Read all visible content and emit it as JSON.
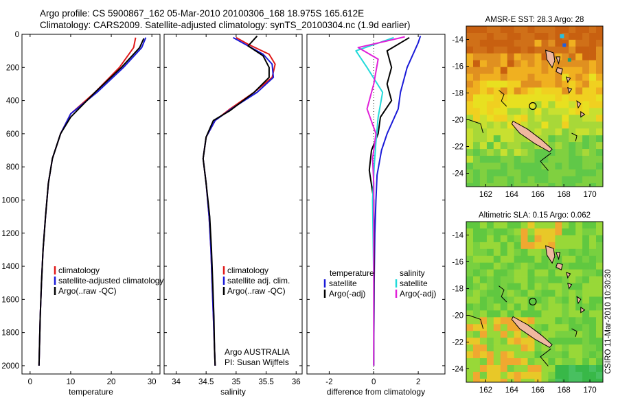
{
  "header": {
    "line1": "Argo profile: CS 5900867_162 05-Mar-2010 20100306_168 18.975S 165.612E",
    "line2": "Climatology: CARS2009. Satellite-adjusted climatology: synTS_20100304.nc (1.9d earlier)"
  },
  "stamp": "CSIRO 11-Mar-2010 10:30:30",
  "colors": {
    "climatology": "#e01818",
    "satellite": "#1a1ad8",
    "argo": "#000000",
    "cyan": "#22dada",
    "magenta": "#e020d8"
  },
  "chart_data": [
    {
      "type": "line",
      "name": "temperature-profile",
      "xlabel": "temperature",
      "ylabel": "",
      "xlim": [
        -2,
        32
      ],
      "ylim": [
        2050,
        0
      ],
      "xticks": [
        0,
        10,
        20,
        30
      ],
      "yticks": [
        0,
        200,
        400,
        600,
        800,
        1000,
        1200,
        1400,
        1600,
        1800,
        2000
      ],
      "legend": {
        "position": "lower-right",
        "entries": [
          "climatology",
          "satellite-adjusted climatology",
          "Argo(..raw -QC)"
        ]
      },
      "series": [
        {
          "name": "climatology",
          "color": "red",
          "points": [
            [
              26,
              20
            ],
            [
              25.5,
              80
            ],
            [
              22,
              200
            ],
            [
              16,
              350
            ],
            [
              10,
              480
            ],
            [
              7.5,
              600
            ],
            [
              5.5,
              750
            ],
            [
              4.5,
              900
            ],
            [
              3.8,
              1100
            ],
            [
              3.2,
              1300
            ],
            [
              2.8,
              1500
            ],
            [
              2.5,
              1700
            ],
            [
              2.3,
              1900
            ],
            [
              2.2,
              2000
            ]
          ]
        },
        {
          "name": "satellite-adjusted climatology",
          "color": "blue",
          "points": [
            [
              28.5,
              20
            ],
            [
              27.5,
              80
            ],
            [
              23,
              200
            ],
            [
              16.5,
              350
            ],
            [
              10,
              480
            ],
            [
              7.5,
              600
            ],
            [
              5.5,
              750
            ],
            [
              4.5,
              900
            ],
            [
              3.8,
              1100
            ],
            [
              3.2,
              1300
            ],
            [
              2.8,
              1500
            ],
            [
              2.5,
              1700
            ],
            [
              2.3,
              1900
            ],
            [
              2.2,
              2000
            ]
          ]
        },
        {
          "name": "Argo(..raw -QC)",
          "color": "black",
          "points": [
            [
              28,
              25
            ],
            [
              27,
              80
            ],
            [
              22.5,
              200
            ],
            [
              16,
              350
            ],
            [
              10,
              500
            ],
            [
              7.5,
              600
            ],
            [
              5.5,
              750
            ],
            [
              4.5,
              900
            ],
            [
              3.8,
              1100
            ],
            [
              3.2,
              1300
            ],
            [
              2.8,
              1500
            ],
            [
              2.5,
              1700
            ],
            [
              2.3,
              1900
            ],
            [
              2.2,
              2000
            ]
          ]
        }
      ]
    },
    {
      "type": "line",
      "name": "salinity-profile",
      "xlabel": "salinity",
      "xlim": [
        33.8,
        36.1
      ],
      "ylim": [
        2050,
        0
      ],
      "xticks": [
        34,
        34.5,
        35,
        35.5,
        36
      ],
      "legend": {
        "position": "lower-right",
        "entries": [
          "climatology",
          "satellite adj. clim.",
          "Argo(..raw -QC)"
        ]
      },
      "annotations": [
        "Argo AUSTRALIA",
        "PI: Susan Wijffels"
      ],
      "series": [
        {
          "name": "climatology",
          "color": "red",
          "points": [
            [
              35.0,
              20
            ],
            [
              35.2,
              60
            ],
            [
              35.55,
              120
            ],
            [
              35.65,
              180
            ],
            [
              35.6,
              260
            ],
            [
              35.3,
              350
            ],
            [
              34.9,
              450
            ],
            [
              34.65,
              520
            ],
            [
              34.5,
              620
            ],
            [
              34.45,
              750
            ],
            [
              34.5,
              900
            ],
            [
              34.55,
              1100
            ],
            [
              34.58,
              1300
            ],
            [
              34.6,
              1500
            ],
            [
              34.62,
              1700
            ],
            [
              34.64,
              1900
            ],
            [
              34.65,
              2000
            ]
          ]
        },
        {
          "name": "satellite adj. clim.",
          "color": "blue",
          "points": [
            [
              34.95,
              20
            ],
            [
              35.15,
              60
            ],
            [
              35.45,
              120
            ],
            [
              35.6,
              180
            ],
            [
              35.62,
              260
            ],
            [
              35.35,
              350
            ],
            [
              34.92,
              450
            ],
            [
              34.65,
              520
            ],
            [
              34.5,
              620
            ],
            [
              34.45,
              750
            ],
            [
              34.5,
              900
            ],
            [
              34.55,
              1100
            ],
            [
              34.58,
              1300
            ],
            [
              34.6,
              1500
            ],
            [
              34.62,
              1700
            ],
            [
              34.64,
              1900
            ],
            [
              34.65,
              2000
            ]
          ]
        },
        {
          "name": "Argo(..raw -QC)",
          "color": "black",
          "points": [
            [
              35.35,
              10
            ],
            [
              35.2,
              70
            ],
            [
              35.45,
              130
            ],
            [
              35.55,
              200
            ],
            [
              35.55,
              260
            ],
            [
              35.3,
              350
            ],
            [
              34.9,
              460
            ],
            [
              34.62,
              520
            ],
            [
              34.5,
              620
            ],
            [
              34.45,
              750
            ],
            [
              34.5,
              900
            ],
            [
              34.56,
              1100
            ],
            [
              34.59,
              1300
            ],
            [
              34.61,
              1500
            ],
            [
              34.63,
              1700
            ],
            [
              34.64,
              1900
            ],
            [
              34.65,
              2000
            ]
          ]
        }
      ]
    },
    {
      "type": "line",
      "name": "difference-profile",
      "xlabel": "difference from climatology",
      "xlim": [
        -3,
        3.2
      ],
      "ylim": [
        2050,
        0
      ],
      "xticks": [
        -2,
        0,
        2
      ],
      "legend": {
        "position": "lower-center",
        "entries": [
          "temperature",
          "satellite",
          "Argo(-adj)",
          "salinity",
          "satellite",
          "Argo(-adj)"
        ]
      },
      "series": [
        {
          "name": "temperature satellite",
          "color": "blue",
          "points": [
            [
              2.1,
              10
            ],
            [
              2.0,
              50
            ],
            [
              1.5,
              200
            ],
            [
              1.2,
              350
            ],
            [
              1.1,
              450
            ],
            [
              0.6,
              600
            ],
            [
              0.35,
              700
            ],
            [
              0.15,
              850
            ],
            [
              0.1,
              1000
            ],
            [
              0.05,
              1200
            ],
            [
              0.02,
              1500
            ],
            [
              0.0,
              2000
            ]
          ]
        },
        {
          "name": "temperature Argo(-adj)",
          "color": "black",
          "points": [
            [
              1.6,
              20
            ],
            [
              0.6,
              100
            ],
            [
              0.8,
              200
            ],
            [
              0.6,
              300
            ],
            [
              0.8,
              400
            ],
            [
              0.3,
              500
            ],
            [
              0.2,
              600
            ],
            [
              -0.1,
              700
            ],
            [
              -0.2,
              820
            ],
            [
              0.0,
              1000
            ],
            [
              0.02,
              1400
            ],
            [
              0.0,
              2000
            ]
          ]
        },
        {
          "name": "salinity satellite",
          "color": "cyan",
          "points": [
            [
              0.9,
              20
            ],
            [
              -0.8,
              100
            ],
            [
              -0.3,
              200
            ],
            [
              0.4,
              350
            ],
            [
              0.2,
              500
            ],
            [
              0.1,
              650
            ],
            [
              0.02,
              800
            ],
            [
              -0.05,
              1000
            ],
            [
              0.0,
              1500
            ],
            [
              0.0,
              2000
            ]
          ]
        },
        {
          "name": "salinity Argo(-adj)",
          "color": "magenta",
          "points": [
            [
              1.4,
              15
            ],
            [
              -0.7,
              80
            ],
            [
              0.2,
              150
            ],
            [
              0.0,
              300
            ],
            [
              -0.3,
              450
            ],
            [
              0.1,
              600
            ],
            [
              -0.05,
              750
            ],
            [
              0.0,
              900
            ],
            [
              0.0,
              2000
            ]
          ]
        }
      ]
    },
    {
      "type": "heatmap",
      "name": "sst-map",
      "title": "AMSR-E SST: 28.3 Argo: 28",
      "xticks": [
        "162",
        "164",
        "166",
        "168",
        "170"
      ],
      "yticks": [
        "-14",
        "-16",
        "-18",
        "-20",
        "-22",
        "-24"
      ],
      "xlim": [
        160.5,
        171
      ],
      "ylim": [
        -25,
        -13
      ],
      "argo_position": [
        165.612,
        -18.975
      ]
    },
    {
      "type": "heatmap",
      "name": "sla-map",
      "title": "Altimetric SLA: 0.15 Argo: 0.062",
      "xticks": [
        "162",
        "164",
        "166",
        "168",
        "170"
      ],
      "yticks": [
        "-14",
        "-16",
        "-18",
        "-20",
        "-22",
        "-24"
      ],
      "xlim": [
        160.5,
        171
      ],
      "ylim": [
        -25,
        -13
      ],
      "argo_position": [
        165.612,
        -18.975
      ]
    }
  ]
}
